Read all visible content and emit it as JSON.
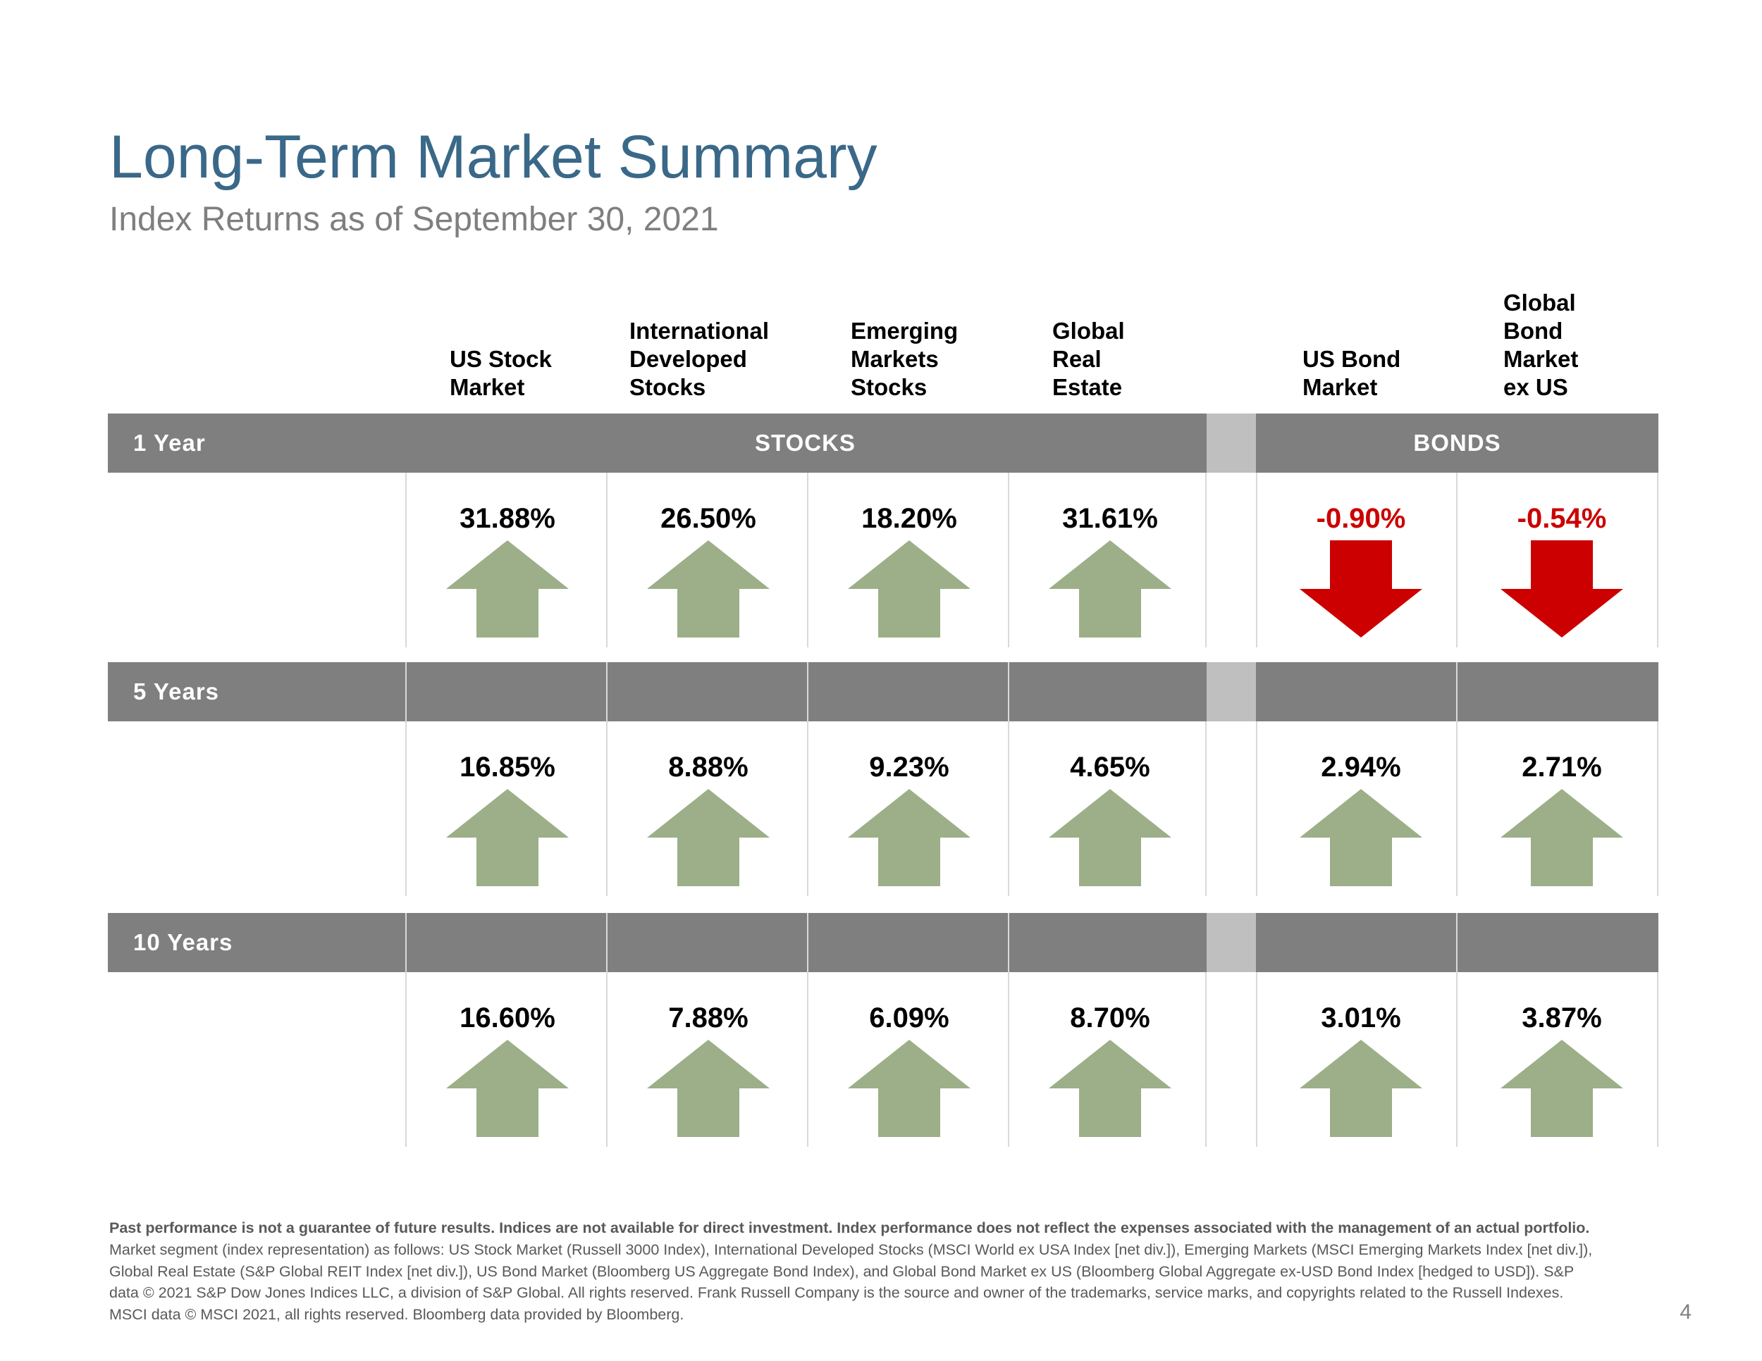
{
  "header": {
    "title": "Long-Term Market Summary",
    "subtitle": "Index Returns as of September 30, 2021"
  },
  "columns": [
    {
      "lines": [
        "US Stock",
        "Market"
      ]
    },
    {
      "lines": [
        "International",
        "Developed",
        "Stocks"
      ]
    },
    {
      "lines": [
        "Emerging",
        "Markets",
        "Stocks"
      ]
    },
    {
      "lines": [
        "Global",
        "Real",
        "Estate"
      ]
    },
    {
      "lines": [
        "US Bond",
        "Market"
      ]
    },
    {
      "lines": [
        "Global",
        "Bond",
        "Market",
        "ex US"
      ]
    }
  ],
  "group_labels": {
    "stocks": "STOCKS",
    "bonds": "BONDS"
  },
  "periods": [
    {
      "label": "1 Year",
      "values": [
        "31.88%",
        "26.50%",
        "18.20%",
        "31.61%",
        "-0.90%",
        "-0.54%"
      ],
      "directions": [
        "up",
        "up",
        "up",
        "up",
        "down",
        "down"
      ]
    },
    {
      "label": "5 Years",
      "values": [
        "16.85%",
        "8.88%",
        "9.23%",
        "4.65%",
        "2.94%",
        "2.71%"
      ],
      "directions": [
        "up",
        "up",
        "up",
        "up",
        "up",
        "up"
      ]
    },
    {
      "label": "10 Years",
      "values": [
        "16.60%",
        "7.88%",
        "6.09%",
        "8.70%",
        "3.01%",
        "3.87%"
      ],
      "directions": [
        "up",
        "up",
        "up",
        "up",
        "up",
        "up"
      ]
    }
  ],
  "colors": {
    "up": "#9caf88",
    "down": "#cc0000",
    "band": "#7f7f7f",
    "gap": "#bfbfbf",
    "title": "#3a6888"
  },
  "footnote": {
    "bold": "Past performance is not a guarantee of future results. Indices are not available for direct investment. Index performance does not reflect the expenses associated with the management of an actual portfolio.",
    "text": " Market segment (index representation) as follows: US Stock Market (Russell 3000 Index), International Developed Stocks (MSCI World ex USA Index [net div.]), Emerging Markets (MSCI Emerging Markets Index [net div.]), Global Real Estate (S&P Global REIT Index [net div.]), US Bond Market (Bloomberg US Aggregate Bond Index), and Global Bond Market ex US (Bloomberg Global Aggregate ex-USD Bond Index [hedged to USD]). S&P data © 2021 S&P Dow Jones Indices LLC, a division of S&P Global. All rights reserved. Frank Russell Company is the source and owner of the trademarks, service marks, and copyrights related to the Russell Indexes. MSCI data © MSCI 2021, all rights reserved. Bloomberg data provided by Bloomberg."
  },
  "page_number": "4"
}
